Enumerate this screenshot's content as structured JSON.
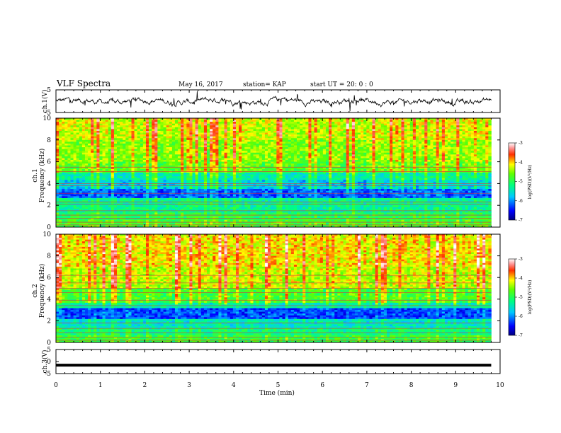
{
  "header": {
    "title": "VLF Spectra",
    "date": "May 16, 2017",
    "station": "station= KAP",
    "start": "start  UT =   20: 0  : 0"
  },
  "chart_data": [
    {
      "type": "line",
      "name": "ch1-timeseries",
      "ylabel": "ch.1(V)",
      "ylim": [
        -5,
        5
      ],
      "yticks": [
        "5",
        "-5"
      ],
      "xlim": [
        0,
        10
      ],
      "x_end": 9.8,
      "description_level": "noisy waveform around 0 V with spikes"
    },
    {
      "type": "heatmap",
      "name": "ch1-spectrogram",
      "ylabel": "ch.1\nFrequency (kHz)",
      "ylabel_line1": "ch.1",
      "ylabel_line2": "Frequency (kHz)",
      "ylim": [
        0,
        10
      ],
      "yticks": [
        "0",
        "2",
        "4",
        "6",
        "8",
        "10"
      ],
      "xlim": [
        0,
        10
      ],
      "x_end": 9.8,
      "colorbar": {
        "label": "log(PSD)(V²/Hz)",
        "min": -7,
        "max": -3,
        "ticks": [
          "-3",
          "-4",
          "-5",
          "-6",
          "-7"
        ]
      },
      "bands": [
        {
          "f0": 0.0,
          "f1": 0.6,
          "level": -4.8
        },
        {
          "f0": 0.6,
          "f1": 1.3,
          "level": -5.0
        },
        {
          "f0": 1.3,
          "f1": 2.6,
          "level": -5.3
        },
        {
          "f0": 2.6,
          "f1": 3.5,
          "level": -6.2
        },
        {
          "f0": 3.5,
          "f1": 4.3,
          "level": -5.7
        },
        {
          "f0": 4.3,
          "f1": 5.0,
          "level": -5.4
        },
        {
          "f0": 5.0,
          "f1": 6.0,
          "level": -4.7
        },
        {
          "f0": 6.0,
          "f1": 8.0,
          "level": -4.5
        },
        {
          "f0": 8.0,
          "f1": 10.0,
          "level": -4.3
        }
      ],
      "lines_khz": [
        0.2,
        0.45,
        0.8,
        1.1,
        1.5,
        2.1,
        2.3,
        3.1,
        3.8,
        4.0,
        5.1,
        5.5
      ]
    },
    {
      "type": "heatmap",
      "name": "ch2-spectrogram",
      "ylabel": "ch.2\nFrequency (kHz)",
      "ylabel_line1": "ch.2",
      "ylabel_line2": "Frequency (kHz)",
      "ylim": [
        0,
        10
      ],
      "yticks": [
        "0",
        "2",
        "4",
        "6",
        "8",
        "10"
      ],
      "xlim": [
        0,
        10
      ],
      "x_end": 9.8,
      "colorbar": {
        "label": "log(PSD)(V²/Hz)",
        "min": -7,
        "max": -3,
        "ticks": [
          "-3",
          "-4",
          "-5",
          "-6",
          "-7"
        ]
      },
      "bands": [
        {
          "f0": 0.0,
          "f1": 0.6,
          "level": -4.9
        },
        {
          "f0": 0.6,
          "f1": 1.4,
          "level": -5.2
        },
        {
          "f0": 1.4,
          "f1": 2.1,
          "level": -5.5
        },
        {
          "f0": 2.1,
          "f1": 3.1,
          "level": -6.3
        },
        {
          "f0": 3.1,
          "f1": 3.7,
          "level": -5.4
        },
        {
          "f0": 3.7,
          "f1": 5.0,
          "level": -4.8
        },
        {
          "f0": 5.0,
          "f1": 7.0,
          "level": -4.3
        },
        {
          "f0": 7.0,
          "f1": 10.0,
          "level": -4.1
        }
      ],
      "lines_khz": [
        0.2,
        0.5,
        0.9,
        1.3,
        1.8,
        3.4,
        3.9,
        4.6,
        5.0,
        5.5,
        6.2
      ]
    },
    {
      "type": "line",
      "name": "ch3-timeseries",
      "ylabel": "ch.3(V)",
      "ylim": [
        -5,
        5
      ],
      "yticks": [
        "5",
        "0",
        "-5"
      ],
      "xlim": [
        0,
        10
      ],
      "x_end": 9.8,
      "value": -1.5
    }
  ],
  "xaxis": {
    "label": "Time  (min)",
    "ticks": [
      "0",
      "1",
      "2",
      "3",
      "4",
      "5",
      "6",
      "7",
      "8",
      "9",
      "10"
    ]
  }
}
